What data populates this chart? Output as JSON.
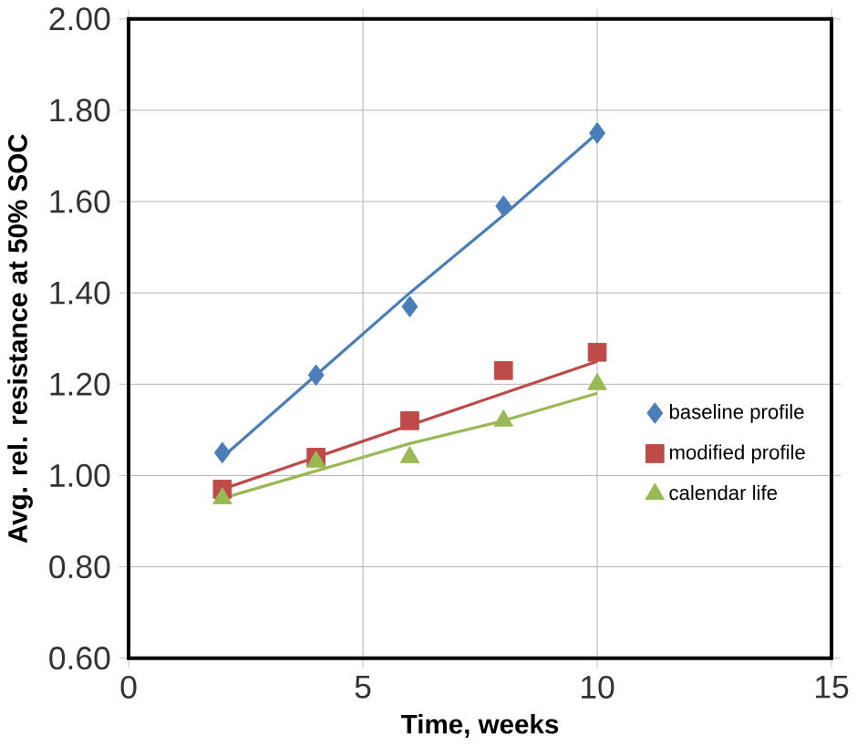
{
  "chart_data": {
    "type": "scatter",
    "xlabel": "Time, weeks",
    "ylabel": "Avg. rel. resistance at 50% SOC",
    "xlim": [
      0,
      15
    ],
    "xticks": [
      0,
      5,
      10,
      15
    ],
    "ylim": [
      0.6,
      2.0
    ],
    "yticks": [
      {
        "value": 0.6,
        "label": "0.60"
      },
      {
        "value": 0.8,
        "label": "0.80"
      },
      {
        "value": 1.0,
        "label": "1.00"
      },
      {
        "value": 1.2,
        "label": "1.20"
      },
      {
        "value": 1.4,
        "label": "1.40"
      },
      {
        "value": 1.6,
        "label": "1.60"
      },
      {
        "value": 1.8,
        "label": "1.80"
      },
      {
        "value": 2.0,
        "label": "2.00"
      }
    ],
    "grid": true,
    "legend": "right",
    "x": [
      2,
      4,
      6,
      8,
      10
    ],
    "series": [
      {
        "name": "baseline profile",
        "color": "#4a7ebb",
        "marker": "diamond",
        "values": [
          1.05,
          1.22,
          1.37,
          1.59,
          1.75
        ]
      },
      {
        "name": "modified profile",
        "color": "#be4b48",
        "marker": "square",
        "values": [
          0.97,
          1.04,
          1.12,
          1.23,
          1.27
        ]
      },
      {
        "name": "calendar life",
        "color": "#98b954",
        "marker": "triangle",
        "values": [
          0.95,
          1.03,
          1.04,
          1.12,
          1.2
        ]
      },
      {
        "type": "line",
        "color": "#4a7ebb",
        "values": [
          1.04,
          1.22,
          1.4,
          1.57,
          1.75
        ]
      },
      {
        "type": "line",
        "color": "#be4b48",
        "values": [
          0.97,
          1.04,
          1.11,
          1.18,
          1.25
        ]
      },
      {
        "type": "line",
        "color": "#98b954",
        "values": [
          0.95,
          1.01,
          1.07,
          1.12,
          1.18
        ]
      }
    ]
  }
}
